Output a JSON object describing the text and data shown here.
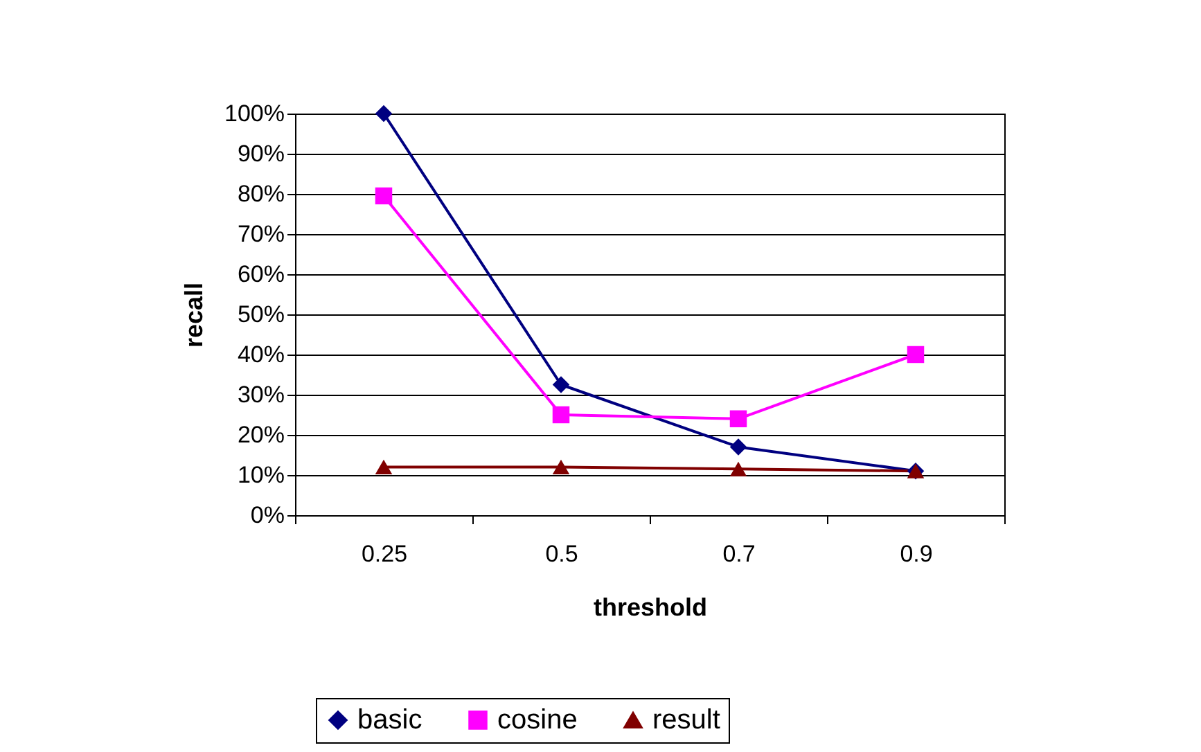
{
  "chart_data": {
    "type": "line",
    "xlabel": "threshold",
    "ylabel": "recall",
    "categories": [
      "0.25",
      "0.5",
      "0.7",
      "0.9"
    ],
    "series": [
      {
        "name": "basic",
        "color": "#000080",
        "marker": "diamond",
        "values": [
          100,
          32.5,
          17,
          11
        ]
      },
      {
        "name": "cosine",
        "color": "#ff00ff",
        "marker": "square",
        "values": [
          79.5,
          25,
          24,
          40
        ]
      },
      {
        "name": "result",
        "color": "#800000",
        "marker": "triangle",
        "values": [
          12,
          12,
          11.5,
          11
        ]
      }
    ],
    "ylim": [
      0,
      100
    ],
    "yticks": [
      {
        "value": 0,
        "label": "0%"
      },
      {
        "value": 10,
        "label": "10%"
      },
      {
        "value": 20,
        "label": "20%"
      },
      {
        "value": 30,
        "label": "30%"
      },
      {
        "value": 40,
        "label": "40%"
      },
      {
        "value": 50,
        "label": "50%"
      },
      {
        "value": 60,
        "label": "60%"
      },
      {
        "value": 70,
        "label": "70%"
      },
      {
        "value": 80,
        "label": "80%"
      },
      {
        "value": 90,
        "label": "90%"
      },
      {
        "value": 100,
        "label": "100%"
      }
    ],
    "grid": "y",
    "legend": "bottom",
    "line_style": "solid"
  }
}
